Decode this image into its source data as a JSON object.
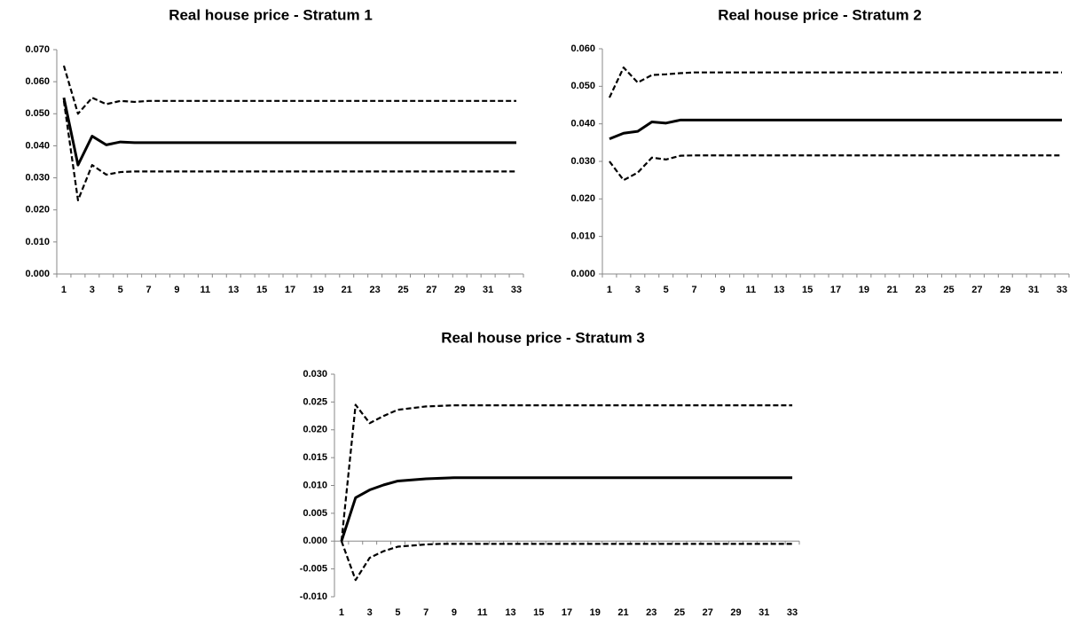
{
  "chart_data": [
    {
      "type": "line",
      "title": "Real house price - Stratum 1",
      "categories": [
        "1",
        null,
        "3",
        null,
        "5",
        null,
        "7",
        null,
        "9",
        null,
        "11",
        null,
        "13",
        null,
        "15",
        null,
        "17",
        null,
        "19",
        null,
        "21",
        null,
        "23",
        null,
        "25",
        null,
        "27",
        null,
        "29",
        null,
        "31",
        null,
        "33"
      ],
      "series": [
        {
          "color": "#000000",
          "style": "solid",
          "values": [
            0.055,
            0.034,
            0.043,
            0.0403,
            0.0412,
            0.041,
            0.041,
            0.041,
            0.041,
            0.041,
            0.041,
            0.041,
            0.041,
            0.041,
            0.041,
            0.041,
            0.041,
            0.041,
            0.041,
            0.041,
            0.041,
            0.041,
            0.041,
            0.041,
            0.041,
            0.041,
            0.041,
            0.041,
            0.041,
            0.041,
            0.041,
            0.041,
            0.041
          ]
        },
        {
          "color": "#000000",
          "style": "dashed",
          "values": [
            0.065,
            0.05,
            0.055,
            0.053,
            0.054,
            0.0537,
            0.054,
            0.054,
            0.054,
            0.054,
            0.054,
            0.054,
            0.054,
            0.054,
            0.054,
            0.054,
            0.054,
            0.054,
            0.054,
            0.054,
            0.054,
            0.054,
            0.054,
            0.054,
            0.054,
            0.054,
            0.054,
            0.054,
            0.054,
            0.054,
            0.054,
            0.054,
            0.054
          ]
        },
        {
          "color": "#000000",
          "style": "dashed",
          "values": [
            0.054,
            0.023,
            0.034,
            0.031,
            0.0318,
            0.032,
            0.032,
            0.032,
            0.032,
            0.032,
            0.032,
            0.032,
            0.032,
            0.032,
            0.032,
            0.032,
            0.032,
            0.032,
            0.032,
            0.032,
            0.032,
            0.032,
            0.032,
            0.032,
            0.032,
            0.032,
            0.032,
            0.032,
            0.032,
            0.032,
            0.032,
            0.032,
            0.032
          ]
        }
      ],
      "ylim": [
        0,
        0.07
      ],
      "yticks": [
        {
          "value": 0,
          "label": "0.000"
        },
        {
          "value": 0.01,
          "label": "0.010"
        },
        {
          "value": 0.02,
          "label": "0.020"
        },
        {
          "value": 0.03,
          "label": "0.030"
        },
        {
          "value": 0.04,
          "label": "0.040"
        },
        {
          "value": 0.05,
          "label": "0.050"
        },
        {
          "value": 0.06,
          "label": "0.060"
        },
        {
          "value": 0.07,
          "label": "0.070"
        }
      ]
    },
    {
      "type": "line",
      "title": "Real house price - Stratum 2",
      "categories": [
        "1",
        null,
        "3",
        null,
        "5",
        null,
        "7",
        null,
        "9",
        null,
        "11",
        null,
        "13",
        null,
        "15",
        null,
        "17",
        null,
        "19",
        null,
        "21",
        null,
        "23",
        null,
        "25",
        null,
        "27",
        null,
        "29",
        null,
        "31",
        null,
        "33"
      ],
      "series": [
        {
          "color": "#000000",
          "style": "solid",
          "values": [
            0.036,
            0.0375,
            0.038,
            0.0405,
            0.0402,
            0.041,
            0.041,
            0.041,
            0.041,
            0.041,
            0.041,
            0.041,
            0.041,
            0.041,
            0.041,
            0.041,
            0.041,
            0.041,
            0.041,
            0.041,
            0.041,
            0.041,
            0.041,
            0.041,
            0.041,
            0.041,
            0.041,
            0.041,
            0.041,
            0.041,
            0.041,
            0.041,
            0.041
          ]
        },
        {
          "color": "#000000",
          "style": "dashed",
          "values": [
            0.047,
            0.055,
            0.051,
            0.053,
            0.0532,
            0.0535,
            0.0537,
            0.0537,
            0.0537,
            0.0537,
            0.0537,
            0.0537,
            0.0537,
            0.0537,
            0.0537,
            0.0537,
            0.0537,
            0.0537,
            0.0537,
            0.0537,
            0.0537,
            0.0537,
            0.0537,
            0.0537,
            0.0537,
            0.0537,
            0.0537,
            0.0537,
            0.0537,
            0.0537,
            0.0537,
            0.0537,
            0.0537
          ]
        },
        {
          "color": "#000000",
          "style": "dashed",
          "values": [
            0.03,
            0.025,
            0.027,
            0.031,
            0.0305,
            0.0315,
            0.0316,
            0.0316,
            0.0316,
            0.0316,
            0.0316,
            0.0316,
            0.0316,
            0.0316,
            0.0316,
            0.0316,
            0.0316,
            0.0316,
            0.0316,
            0.0316,
            0.0316,
            0.0316,
            0.0316,
            0.0316,
            0.0316,
            0.0316,
            0.0316,
            0.0316,
            0.0316,
            0.0316,
            0.0316,
            0.0316,
            0.0316
          ]
        }
      ],
      "ylim": [
        0,
        0.06
      ],
      "yticks": [
        {
          "value": 0,
          "label": "0.000"
        },
        {
          "value": 0.01,
          "label": "0.010"
        },
        {
          "value": 0.02,
          "label": "0.020"
        },
        {
          "value": 0.03,
          "label": "0.030"
        },
        {
          "value": 0.04,
          "label": "0.040"
        },
        {
          "value": 0.05,
          "label": "0.050"
        },
        {
          "value": 0.06,
          "label": "0.060"
        }
      ]
    },
    {
      "type": "line",
      "title": "Real house price - Stratum 3",
      "categories": [
        "1",
        null,
        "3",
        null,
        "5",
        null,
        "7",
        null,
        "9",
        null,
        "11",
        null,
        "13",
        null,
        "15",
        null,
        "17",
        null,
        "19",
        null,
        "21",
        null,
        "23",
        null,
        "25",
        null,
        "27",
        null,
        "29",
        null,
        "31",
        null,
        "33"
      ],
      "series": [
        {
          "color": "#000000",
          "style": "solid",
          "values": [
            0,
            0.0078,
            0.0092,
            0.0101,
            0.0108,
            0.011,
            0.0112,
            0.0113,
            0.0114,
            0.0114,
            0.0114,
            0.0114,
            0.0114,
            0.0114,
            0.0114,
            0.0114,
            0.0114,
            0.0114,
            0.0114,
            0.0114,
            0.0114,
            0.0114,
            0.0114,
            0.0114,
            0.0114,
            0.0114,
            0.0114,
            0.0114,
            0.0114,
            0.0114,
            0.0114,
            0.0114,
            0.0114
          ]
        },
        {
          "color": "#000000",
          "style": "dashed",
          "values": [
            0,
            0.0245,
            0.0212,
            0.0225,
            0.0236,
            0.0239,
            0.0242,
            0.0243,
            0.0244,
            0.0244,
            0.0244,
            0.0244,
            0.0244,
            0.0244,
            0.0244,
            0.0244,
            0.0244,
            0.0244,
            0.0244,
            0.0244,
            0.0244,
            0.0244,
            0.0244,
            0.0244,
            0.0244,
            0.0244,
            0.0244,
            0.0244,
            0.0244,
            0.0244,
            0.0244,
            0.0244,
            0.0244
          ]
        },
        {
          "color": "#000000",
          "style": "dashed",
          "values": [
            0,
            -0.007,
            -0.003,
            -0.0018,
            -0.001,
            -0.0008,
            -0.0006,
            -0.0005,
            -0.0005,
            -0.0005,
            -0.0005,
            -0.0005,
            -0.0005,
            -0.0005,
            -0.0005,
            -0.0005,
            -0.0005,
            -0.0005,
            -0.0005,
            -0.0005,
            -0.0005,
            -0.0005,
            -0.0005,
            -0.0005,
            -0.0005,
            -0.0005,
            -0.0005,
            -0.0005,
            -0.0005,
            -0.0005,
            -0.0005,
            -0.0005,
            -0.0005
          ]
        }
      ],
      "ylim": [
        -0.01,
        0.03
      ],
      "yticks": [
        {
          "value": -0.01,
          "label": "-0.010"
        },
        {
          "value": -0.005,
          "label": "-0.005"
        },
        {
          "value": 0,
          "label": "0.000"
        },
        {
          "value": 0.005,
          "label": "0.005"
        },
        {
          "value": 0.01,
          "label": "0.010"
        },
        {
          "value": 0.015,
          "label": "0.015"
        },
        {
          "value": 0.02,
          "label": "0.020"
        },
        {
          "value": 0.025,
          "label": "0.025"
        },
        {
          "value": 0.03,
          "label": "0.030"
        }
      ]
    }
  ]
}
